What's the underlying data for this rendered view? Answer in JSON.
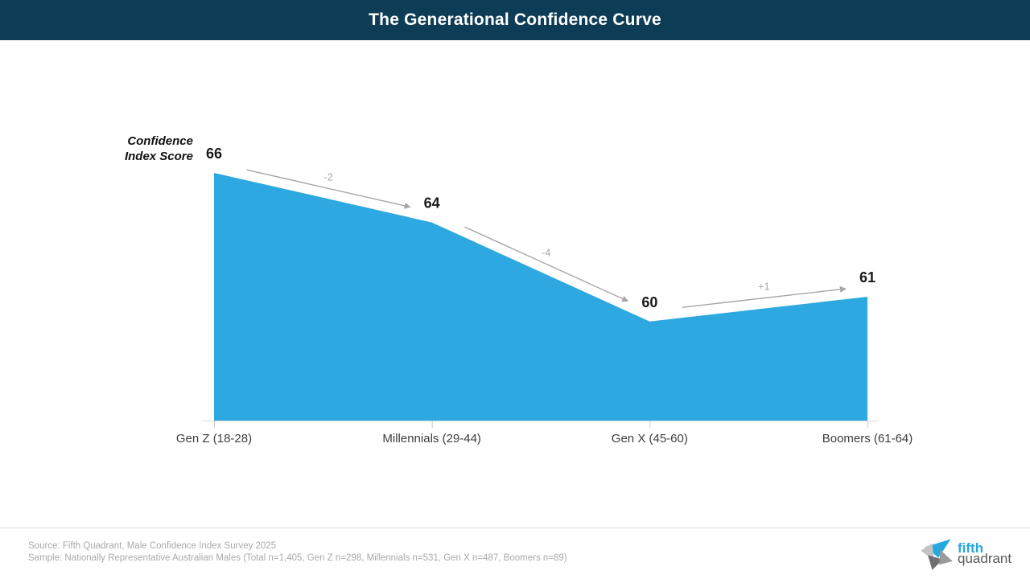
{
  "header": {
    "title": "The Generational Confidence Curve"
  },
  "chart_data": {
    "type": "area",
    "title": "The Generational Confidence Curve",
    "ylabel": "Confidence Index Score",
    "xlabel": "",
    "categories": [
      "Gen Z (18-28)",
      "Millennials (29-44)",
      "Gen X (45-60)",
      "Boomers (61-64)"
    ],
    "values": [
      66,
      64,
      60,
      61
    ],
    "deltas": [
      "-2",
      "-4",
      "+1"
    ],
    "ylim": [
      56,
      68
    ],
    "grid": false,
    "legend": false
  },
  "footer": {
    "source": "Source: Fifth Quadrant, Male Confidence Index Survey 2025",
    "sample": "Sample: Nationally Representative Australian Males (Total n=1,405, Gen Z n=298, Millennials n=531, Gen X n=487, Boomers n=89)"
  },
  "logo": {
    "line1": "fifth",
    "line2": "quadrant"
  },
  "colors": {
    "header_bg": "#0d3d56",
    "area": "#2da8e0",
    "arrow": "#a6a6a6",
    "value_label": "#1a1a1a",
    "axis_label": "#3d3d3d",
    "tick": "#c9c9c9",
    "baseline": "#d9d9d9",
    "footer_text": "#a9a9a9",
    "logo_blue": "#29a8e0",
    "logo_gray": "#58595b"
  }
}
